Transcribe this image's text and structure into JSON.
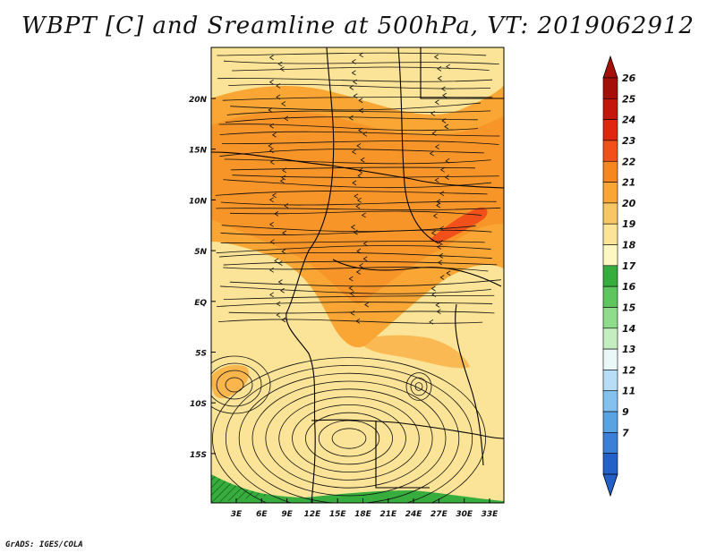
{
  "title": "WBPT [C] and Sreamline at 500hPa, VT: 2019062912",
  "credit": "GrADS: IGES/COLA",
  "map": {
    "lat_labels": [
      "20N",
      "15N",
      "10N",
      "5N",
      "EQ",
      "5S",
      "10S",
      "15S"
    ],
    "lon_labels": [
      "3E",
      "6E",
      "9E",
      "12E",
      "15E",
      "18E",
      "21E",
      "24E",
      "27E",
      "30E",
      "33E"
    ]
  },
  "colorbar": {
    "labels": [
      "26",
      "25",
      "24",
      "23",
      "22",
      "21",
      "20",
      "19",
      "18",
      "17",
      "16",
      "15",
      "14",
      "13",
      "12",
      "11",
      "9",
      "7"
    ],
    "colors": [
      "#a50f0a",
      "#c4160c",
      "#e0260e",
      "#f2501a",
      "#f7861f",
      "#f9a634",
      "#f8c765",
      "#fbe497",
      "#fdf7c1",
      "#37ad3e",
      "#5fc65f",
      "#8edc8c",
      "#c4edc0",
      "#eaf8f8",
      "#b7def6",
      "#84c1ee",
      "#5aa3e3",
      "#3b80d6",
      "#2361c9"
    ]
  },
  "colors": {
    "border": "#000000",
    "land_base": "#fbe497"
  }
}
